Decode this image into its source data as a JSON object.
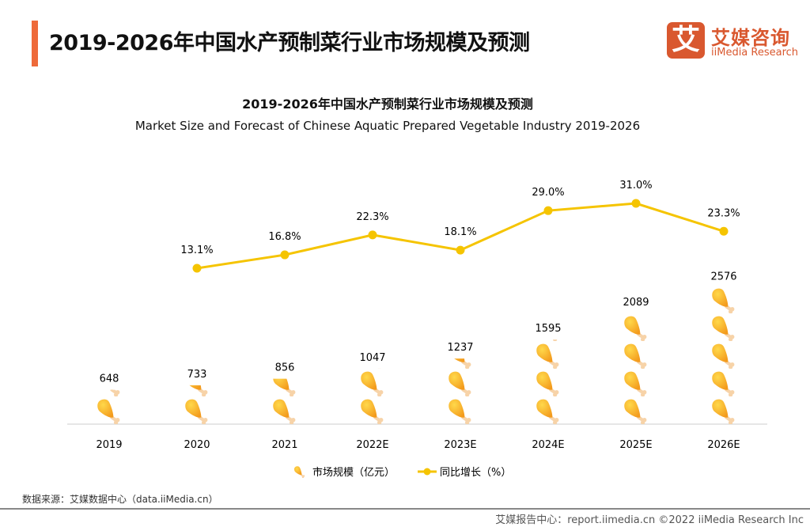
{
  "header": {
    "title": "2019-2026年中国水产预制菜行业市场规模及预测"
  },
  "logo": {
    "mark": "艾",
    "cn": "艾媒咨询",
    "en": "iiMedia Research"
  },
  "chart_data": {
    "type": "bar+line",
    "title": "2019-2026年中国水产预制菜行业市场规模及预测",
    "subtitle": "Market Size and Forecast of Chinese Aquatic Prepared Vegetable Industry 2019-2026",
    "categories": [
      "2019",
      "2020",
      "2021",
      "2022E",
      "2023E",
      "2024E",
      "2025E",
      "2026E"
    ],
    "series": [
      {
        "name": "市场规模（亿元）",
        "type": "pictogram-bar",
        "icon": "drumstick-icon",
        "values": [
          648,
          733,
          856,
          1047,
          1237,
          1595,
          2089,
          2576
        ],
        "labels": [
          "648",
          "733",
          "856",
          "1047",
          "1237",
          "1595",
          "2089",
          "2576"
        ]
      },
      {
        "name": "同比增长（%）",
        "type": "line",
        "color": "#f5c400",
        "values": [
          null,
          13.1,
          16.8,
          22.3,
          18.1,
          29.0,
          31.0,
          23.3
        ],
        "labels": [
          "",
          "13.1%",
          "16.8%",
          "22.3%",
          "18.1%",
          "29.0%",
          "31.0%",
          "23.3%"
        ]
      }
    ],
    "legend": "bottom-center",
    "grid": false
  },
  "source": "数据来源：艾媒数据中心（data.iiMedia.cn）",
  "footer": "艾媒报告中心：report.iimedia.cn   ©2022  iiMedia Research  Inc"
}
